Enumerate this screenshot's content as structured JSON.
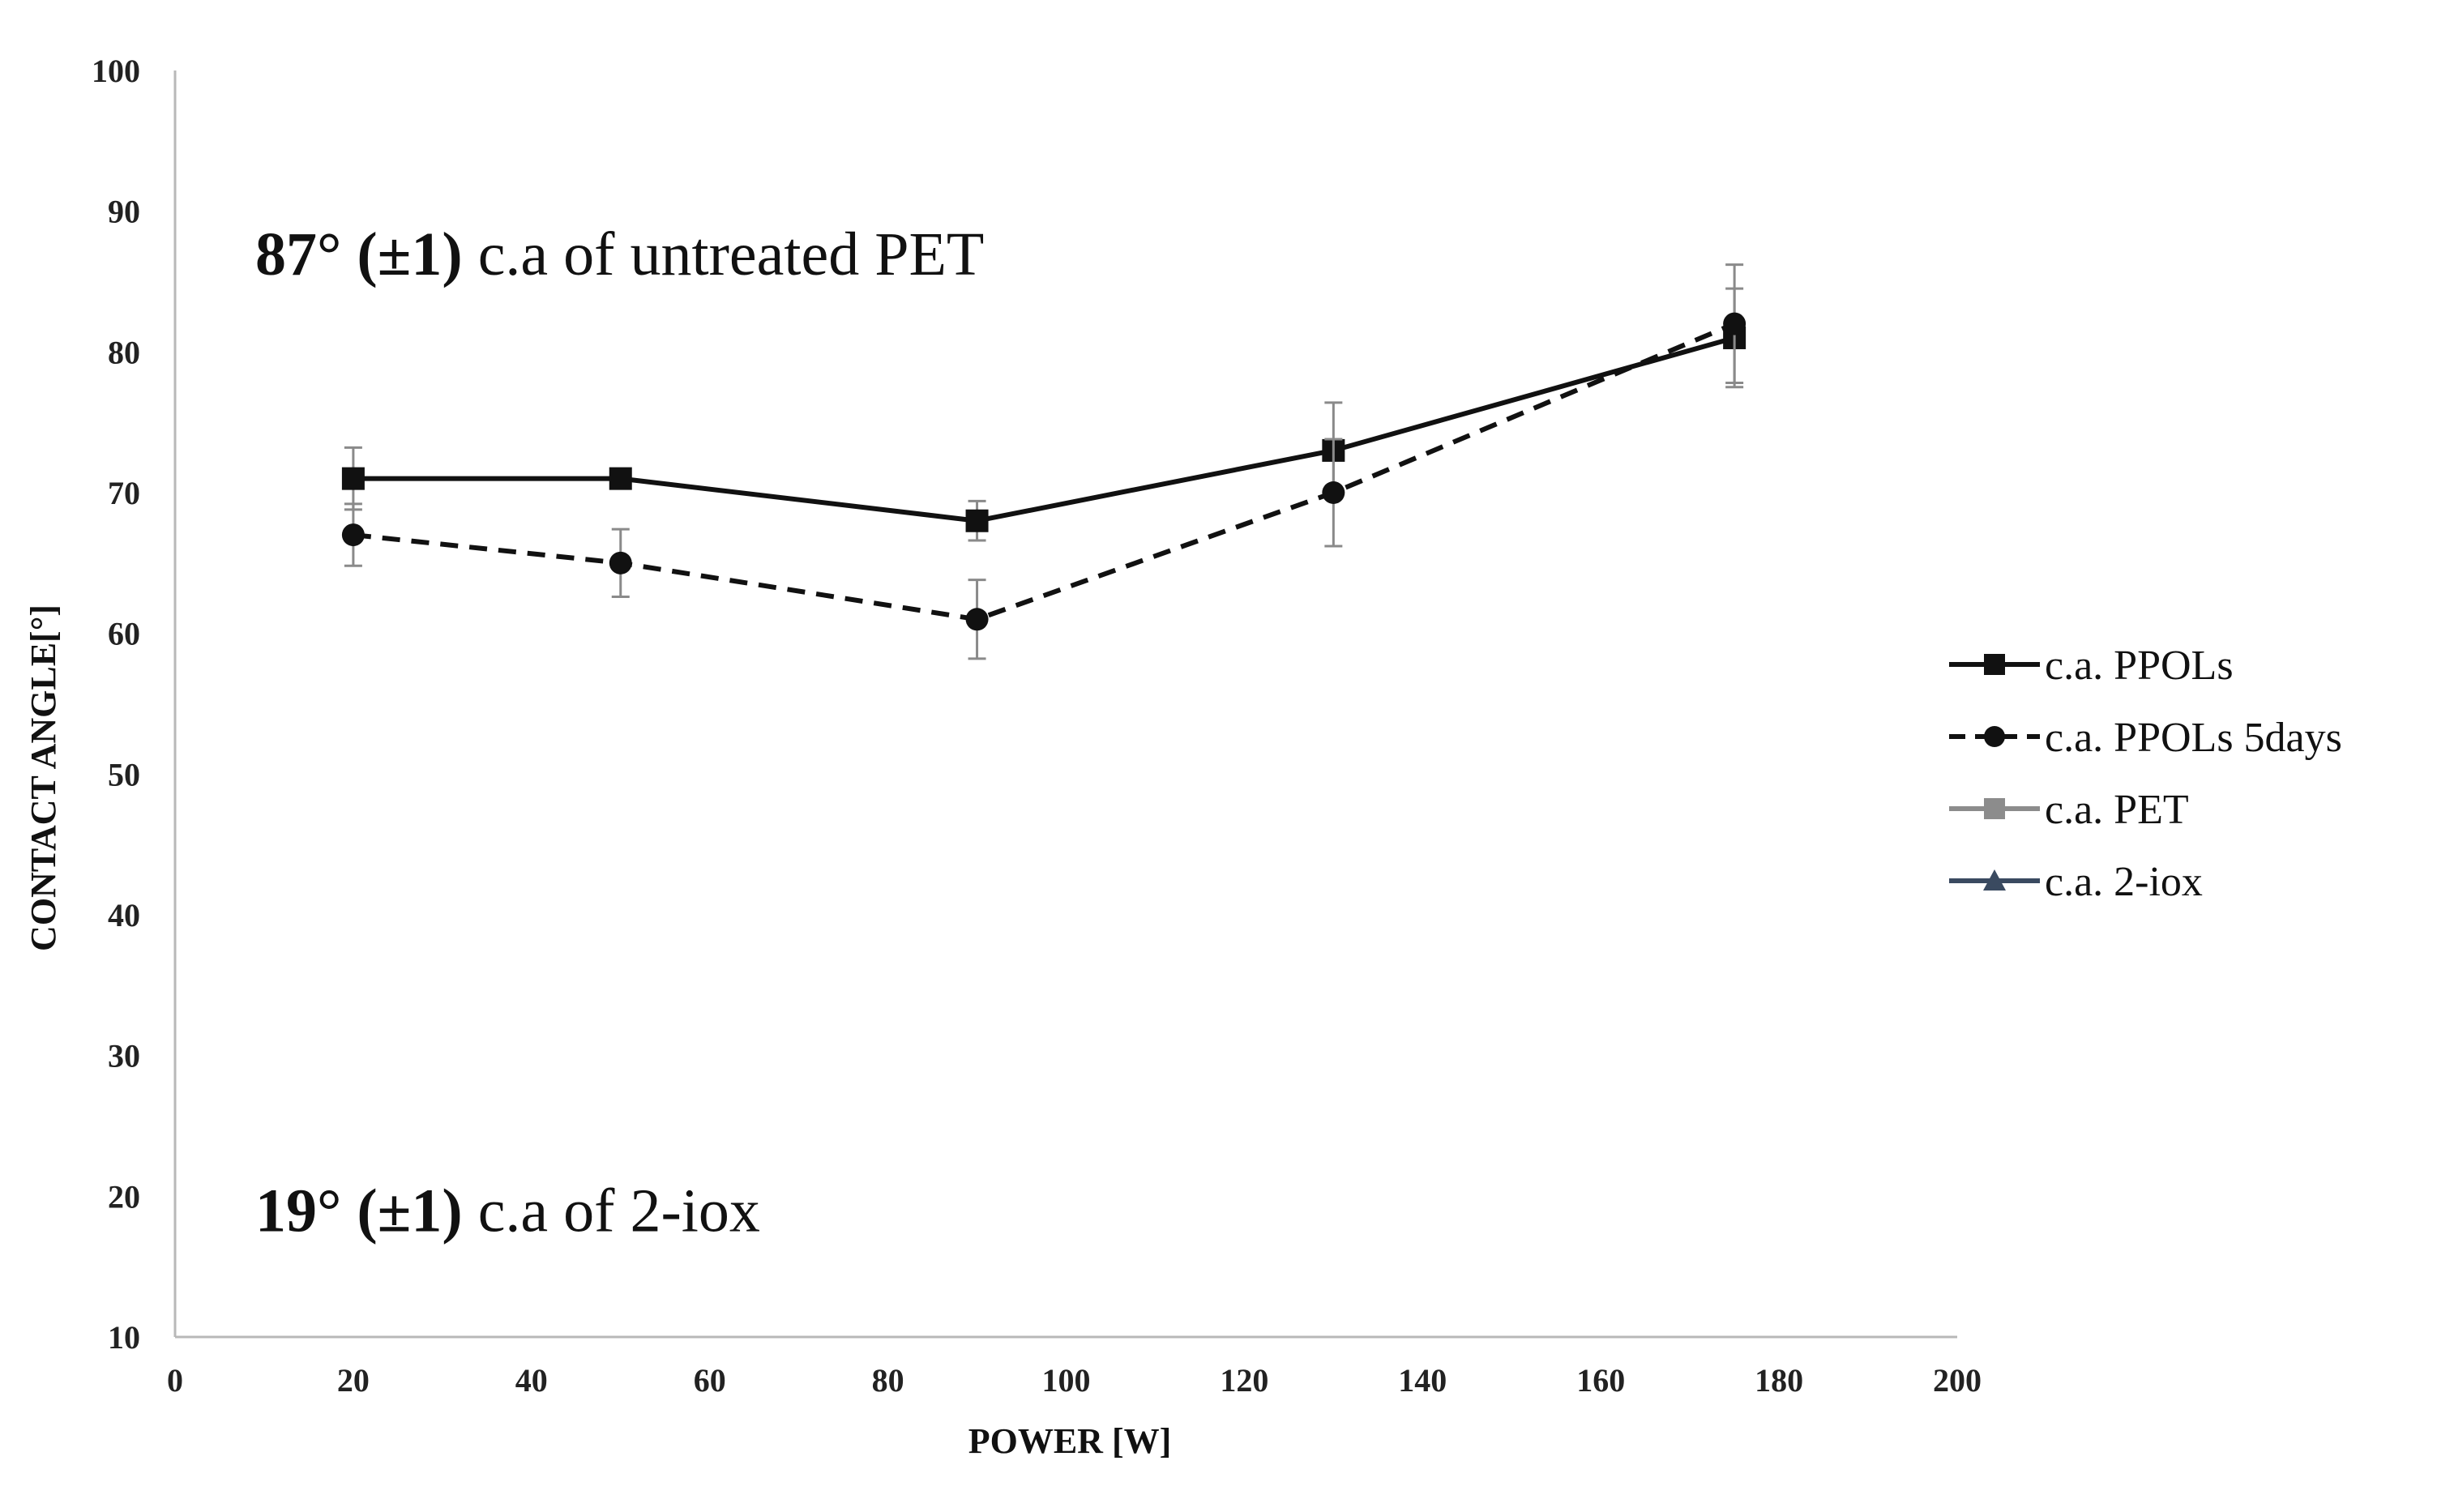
{
  "chart_data": {
    "type": "line",
    "title": "",
    "xlabel": "POWER [W]",
    "ylabel": "CONTACT ANGLE[°]",
    "xlim": [
      0,
      200
    ],
    "ylim": [
      10,
      100
    ],
    "xticks": [
      0,
      20,
      40,
      60,
      80,
      100,
      120,
      140,
      160,
      180,
      200
    ],
    "yticks": [
      10,
      20,
      30,
      40,
      50,
      60,
      70,
      80,
      90,
      100
    ],
    "grid": false,
    "legend_position": "right",
    "series": [
      {
        "name": "c.a. PPOLs",
        "style": "solid",
        "marker": "square",
        "color": "#111111",
        "x": [
          20,
          50,
          90,
          130,
          175
        ],
        "y": [
          71,
          71,
          68,
          73,
          81
        ],
        "err": [
          2.2,
          0.6,
          1.4,
          3.4,
          3.5
        ]
      },
      {
        "name": "c.a. PPOLs 5days",
        "style": "dashed",
        "marker": "circle",
        "color": "#111111",
        "x": [
          20,
          50,
          90,
          130,
          175
        ],
        "y": [
          67,
          65,
          61,
          70,
          82
        ],
        "err": [
          2.2,
          2.4,
          2.8,
          3.8,
          4.2
        ]
      },
      {
        "name": "c.a. PET",
        "style": "solid",
        "marker": "square",
        "color": "#8c8c8c",
        "x": [],
        "y": [],
        "err": []
      },
      {
        "name": "c.a. 2-iox",
        "style": "solid",
        "marker": "triangle",
        "color": "#3a4a60",
        "x": [],
        "y": [],
        "err": []
      }
    ],
    "annotations": [
      {
        "bold": "87° (±1)",
        "text": " c.a of untreated PET",
        "at": [
          9,
          87
        ]
      },
      {
        "bold": "19° (±1)",
        "text": " c.a of 2-iox",
        "at": [
          9,
          19
        ]
      }
    ]
  }
}
